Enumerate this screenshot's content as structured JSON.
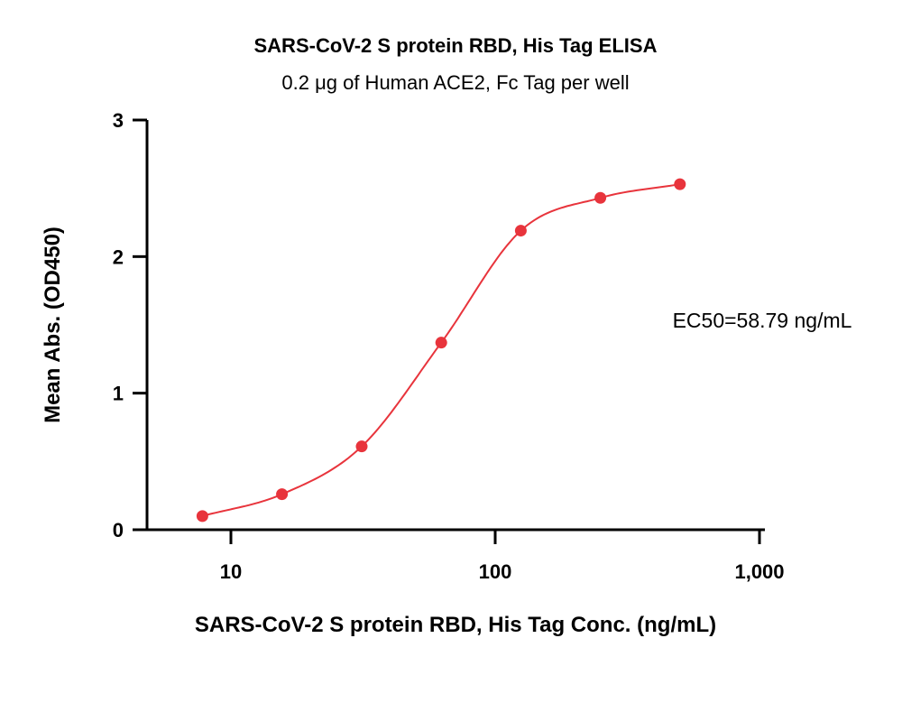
{
  "chart_data": {
    "type": "scatter",
    "title": "SARS-CoV-2 S protein RBD, His Tag ELISA",
    "subtitle": "0.2 μg of Human ACE2, Fc Tag per well",
    "xlabel": "SARS-CoV-2 S protein RBD, His Tag Conc. (ng/mL)",
    "ylabel": "Mean Abs. (OD450)",
    "x_scale": "log",
    "xlim": [
      5,
      1300
    ],
    "ylim": [
      0,
      3
    ],
    "x_ticks": [
      10,
      100,
      1000
    ],
    "x_tick_labels": [
      "10",
      "100",
      "1,000"
    ],
    "y_ticks": [
      0,
      1,
      2,
      3
    ],
    "y_tick_labels": [
      "0",
      "1",
      "2",
      "3"
    ],
    "grid": false,
    "series": [
      {
        "x": [
          7.8,
          15.6,
          31.25,
          62.5,
          125,
          250,
          500
        ],
        "y": [
          0.1,
          0.26,
          0.61,
          1.37,
          2.19,
          2.43,
          2.53
        ],
        "color": "#e8343c",
        "fit": "4PL sigmoidal"
      }
    ],
    "annotation": "EC50=58.79 ng/mL"
  }
}
